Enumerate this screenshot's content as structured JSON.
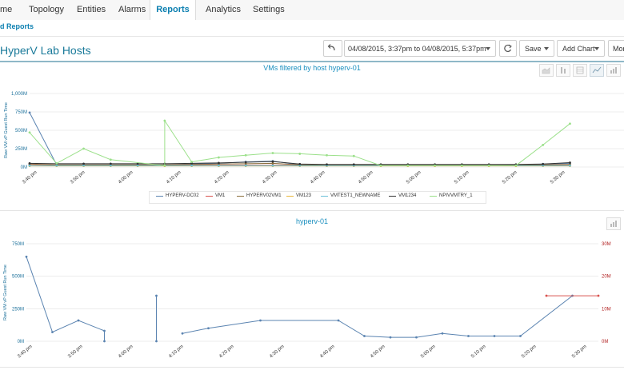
{
  "nav": {
    "tabs": [
      {
        "label": "me"
      },
      {
        "label": "Topology"
      },
      {
        "label": "Entities"
      },
      {
        "label": "Alarms"
      },
      {
        "label": "Reports"
      },
      {
        "label": "Analytics"
      },
      {
        "label": "Settings"
      }
    ],
    "active": "Reports"
  },
  "breadcrumb": "d Reports",
  "page_title": "HyperV Lab Hosts",
  "toolbar": {
    "date_range": "04/08/2015, 3:37pm to 04/08/2015, 5:37pm",
    "save_label": "Save",
    "add_chart_label": "Add Chart",
    "more_label": "Mor"
  },
  "colors": {
    "accent": "#1a8fbf",
    "HYPERV-DC02": "#5b84b1",
    "VM1": "#d9534f",
    "HYPERV02VM1": "#8a6d3b",
    "VM123": "#e8b73a",
    "VMTEST1_NEWNAME": "#6bc0d8",
    "VM1234": "#333333",
    "NPIVVMTRY_1": "#9be08a"
  },
  "icons": [
    "undo-icon",
    "refresh-icon",
    "area-chart-icon",
    "column-chart-icon",
    "table-icon",
    "line-chart-icon",
    "bar-chart-icon"
  ],
  "chart_data": [
    {
      "type": "line",
      "title": "VMs filtered by host hyperv-01",
      "ylabel": "Raw VM vP Guest Run Time",
      "ylim": [
        0,
        1000
      ],
      "y_ticks": [
        "1,000M",
        "750M",
        "500M",
        "250M",
        "0M"
      ],
      "x": [
        "3:40 pm",
        "3:50 pm",
        "4:00 pm",
        "4:10 pm",
        "4:20 pm",
        "4:30 pm",
        "4:40 pm",
        "4:50 pm",
        "5:00 pm",
        "5:10 pm",
        "5:20 pm",
        "5:30 pm"
      ],
      "legend": [
        "HYPERV-DC02",
        "VM1",
        "HYPERV02VM1",
        "VM123",
        "VMTEST1_NEWNAME",
        "VM1234",
        "NPIVVMTRY_1"
      ],
      "series": [
        {
          "name": "HYPERV-DC02",
          "points": [
            [
              0,
              740
            ],
            [
              1,
              30
            ],
            [
              2,
              30
            ],
            [
              3,
              30
            ],
            [
              4,
              30
            ],
            [
              5,
              30
            ],
            [
              6,
              40
            ],
            [
              7,
              50
            ],
            [
              8,
              70
            ],
            [
              9,
              80
            ],
            [
              10,
              30
            ],
            [
              11,
              20
            ],
            [
              12,
              20
            ],
            [
              13,
              20
            ],
            [
              14,
              20
            ],
            [
              15,
              20
            ],
            [
              16,
              20
            ],
            [
              17,
              20
            ],
            [
              18,
              30
            ],
            [
              19,
              40
            ],
            [
              20,
              50
            ]
          ]
        },
        {
          "name": "VM1",
          "points": [
            [
              0,
              35
            ],
            [
              1,
              25
            ],
            [
              2,
              25
            ],
            [
              3,
              25
            ],
            [
              4,
              25
            ],
            [
              5,
              25
            ],
            [
              6,
              25
            ],
            [
              7,
              25
            ],
            [
              8,
              25
            ],
            [
              9,
              25
            ],
            [
              10,
              25
            ],
            [
              11,
              25
            ],
            [
              12,
              25
            ],
            [
              13,
              25
            ],
            [
              14,
              25
            ],
            [
              15,
              25
            ],
            [
              16,
              25
            ],
            [
              17,
              25
            ],
            [
              18,
              25
            ],
            [
              19,
              25
            ],
            [
              20,
              25
            ]
          ]
        },
        {
          "name": "HYPERV02VM1",
          "points": [
            [
              0,
              40
            ],
            [
              1,
              30
            ],
            [
              2,
              30
            ],
            [
              3,
              30
            ],
            [
              4,
              30
            ],
            [
              5,
              30
            ],
            [
              6,
              35
            ],
            [
              7,
              40
            ],
            [
              8,
              45
            ],
            [
              9,
              50
            ],
            [
              10,
              30
            ],
            [
              11,
              25
            ],
            [
              12,
              25
            ],
            [
              13,
              25
            ],
            [
              14,
              25
            ],
            [
              15,
              25
            ],
            [
              16,
              25
            ],
            [
              17,
              25
            ],
            [
              18,
              25
            ],
            [
              19,
              30
            ],
            [
              20,
              35
            ]
          ]
        },
        {
          "name": "VM123",
          "points": [
            [
              0,
              15
            ],
            [
              1,
              15
            ],
            [
              2,
              15
            ],
            [
              3,
              15
            ],
            [
              4,
              15
            ],
            [
              5,
              15
            ],
            [
              6,
              15
            ],
            [
              7,
              15
            ],
            [
              8,
              15
            ],
            [
              9,
              15
            ],
            [
              10,
              15
            ],
            [
              11,
              15
            ],
            [
              12,
              15
            ],
            [
              13,
              15
            ],
            [
              14,
              15
            ],
            [
              15,
              15
            ],
            [
              16,
              15
            ],
            [
              17,
              15
            ],
            [
              18,
              15
            ],
            [
              19,
              15
            ],
            [
              20,
              15
            ]
          ]
        },
        {
          "name": "VMTEST1_NEWNAME",
          "points": [
            [
              0,
              20
            ],
            [
              1,
              20
            ],
            [
              2,
              20
            ],
            [
              3,
              20
            ],
            [
              4,
              20
            ],
            [
              5,
              20
            ],
            [
              6,
              20
            ],
            [
              7,
              20
            ],
            [
              8,
              20
            ],
            [
              9,
              20
            ],
            [
              10,
              20
            ],
            [
              11,
              20
            ],
            [
              12,
              20
            ],
            [
              13,
              20
            ],
            [
              14,
              20
            ],
            [
              15,
              20
            ],
            [
              16,
              20
            ],
            [
              17,
              20
            ],
            [
              18,
              20
            ],
            [
              19,
              20
            ],
            [
              20,
              20
            ]
          ]
        },
        {
          "name": "VM1234",
          "points": [
            [
              0,
              50
            ],
            [
              1,
              45
            ],
            [
              2,
              45
            ],
            [
              3,
              45
            ],
            [
              4,
              45
            ],
            [
              5,
              45
            ],
            [
              6,
              50
            ],
            [
              7,
              55
            ],
            [
              8,
              65
            ],
            [
              9,
              75
            ],
            [
              10,
              40
            ],
            [
              11,
              35
            ],
            [
              12,
              35
            ],
            [
              13,
              35
            ],
            [
              14,
              35
            ],
            [
              15,
              35
            ],
            [
              16,
              35
            ],
            [
              17,
              35
            ],
            [
              18,
              35
            ],
            [
              19,
              40
            ],
            [
              20,
              60
            ]
          ]
        },
        {
          "name": "NPIVVMTRY_1",
          "points": [
            [
              0,
              470
            ],
            [
              1,
              50
            ],
            [
              2,
              250
            ],
            [
              3,
              100
            ],
            [
              5,
              20
            ],
            [
              5,
              630
            ],
            [
              6,
              70
            ],
            [
              7,
              130
            ],
            [
              8,
              160
            ],
            [
              9,
              190
            ],
            [
              10,
              180
            ],
            [
              11,
              160
            ],
            [
              12,
              150
            ],
            [
              13,
              20
            ],
            [
              14,
              20
            ],
            [
              15,
              20
            ],
            [
              16,
              20
            ],
            [
              17,
              20
            ],
            [
              18,
              20
            ],
            [
              19,
              300
            ],
            [
              20,
              590
            ]
          ]
        }
      ]
    },
    {
      "type": "line",
      "title": "hyperv-01",
      "ylabel": "Raw VM vP Guest Run Time",
      "ylim": [
        0,
        750
      ],
      "y_ticks": [
        "750M",
        "500M",
        "250M",
        "0M"
      ],
      "y2lim": [
        0,
        30
      ],
      "y2_ticks": [
        "30M",
        "20M",
        "10M",
        "0M"
      ],
      "x": [
        "3:40 pm",
        "3:50 pm",
        "4:00 pm",
        "4:10 pm",
        "4:20 pm",
        "4:30 pm",
        "4:40 pm",
        "4:50 pm",
        "5:00 pm",
        "5:10 pm",
        "5:20 pm",
        "5:30 pm"
      ],
      "series": [
        {
          "axis": "left",
          "points": [
            [
              0,
              650
            ],
            [
              1,
              70
            ],
            [
              2,
              160
            ],
            [
              3,
              80
            ],
            [
              3,
              0
            ],
            null,
            [
              5,
              350
            ],
            [
              5,
              0
            ],
            null,
            [
              6,
              60
            ],
            [
              7,
              100
            ],
            [
              9,
              160
            ],
            [
              12,
              160
            ],
            [
              13,
              40
            ],
            [
              14,
              30
            ],
            [
              15,
              30
            ],
            [
              16,
              60
            ],
            [
              17,
              40
            ],
            [
              18,
              40
            ],
            [
              19,
              40
            ],
            [
              21,
              350
            ]
          ]
        },
        {
          "axis": "right",
          "points": [
            [
              20,
              14
            ],
            [
              22,
              14
            ]
          ]
        }
      ]
    }
  ]
}
